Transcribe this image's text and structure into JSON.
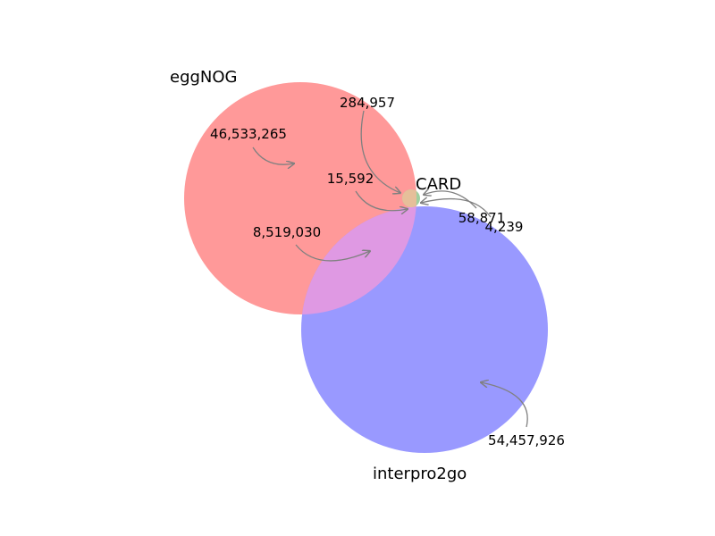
{
  "venn": {
    "colors": {
      "eggnog": "#ff9999",
      "interpro2go": "#9999ff",
      "overlap_eggnog_interpro": "#df99e3",
      "card": "#9fcf9f",
      "overlap_card_eggnog": "#e6bf9a",
      "arrow": "#808080"
    },
    "sets": {
      "eggnog": "eggNOG",
      "interpro2go": "interpro2go",
      "card": "CARD"
    },
    "counts": {
      "eggnog_only": "46,533,265",
      "eggnog_interpro2go": "8,519,030",
      "eggnog_card": "284,957",
      "all_three": "15,592",
      "interpro2go_card": "58,871",
      "card_only": "4,239",
      "interpro2go_only": "54,457,926"
    }
  }
}
